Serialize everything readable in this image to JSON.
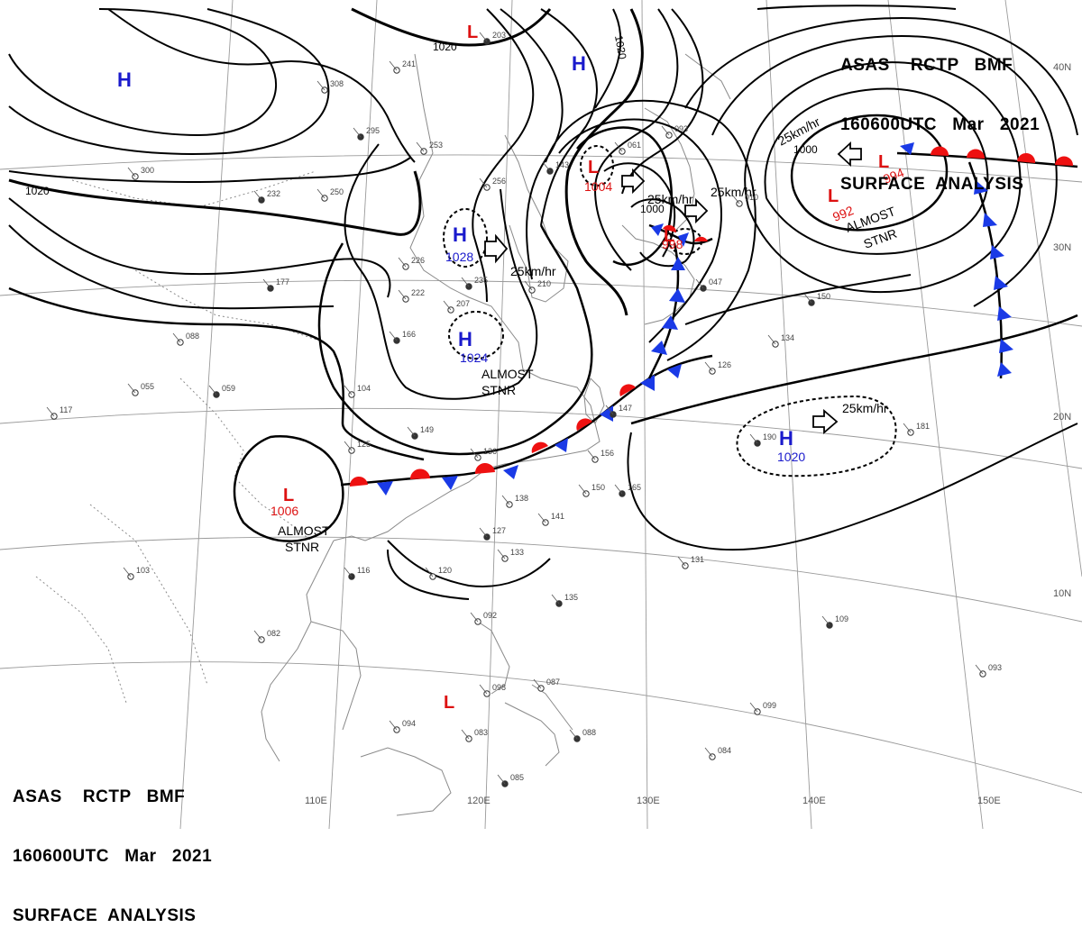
{
  "header": {
    "line1": "ASAS    RCTP   BMF",
    "line2": "160600UTC   Mar   2021",
    "line3": "SURFACE  ANALYSIS"
  },
  "pressure_centers": [
    {
      "type": "H",
      "label": "H",
      "value": ""
    },
    {
      "type": "H",
      "label": "H",
      "value": ""
    },
    {
      "type": "H",
      "label": "H",
      "value": "1028"
    },
    {
      "type": "H",
      "label": "H",
      "value": "1024"
    },
    {
      "type": "H",
      "label": "H",
      "value": "1020"
    },
    {
      "type": "L",
      "label": "L",
      "value": ""
    },
    {
      "type": "L",
      "label": "L",
      "value": "1004"
    },
    {
      "type": "L",
      "label": "L",
      "value": "998"
    },
    {
      "type": "L",
      "label": "L",
      "value": "994"
    },
    {
      "type": "L",
      "label": "L",
      "value": "992"
    },
    {
      "type": "L",
      "label": "L",
      "value": "1006"
    },
    {
      "type": "L",
      "label": "L",
      "value": ""
    }
  ],
  "isobar_labels": [
    "1020",
    "1020",
    "1020",
    "1000",
    "1000"
  ],
  "motion_labels": [
    "25km/hr",
    "25km/hr",
    "25km/hr",
    "25km/hr",
    "25km/hr"
  ],
  "status_labels": [
    {
      "l1": "ALMOST",
      "l2": "STNR"
    },
    {
      "l1": "ALMOST",
      "l2": "STNR"
    },
    {
      "l1": "ALMOST",
      "l2": "STNR"
    }
  ],
  "longitudes": [
    "110E",
    "120E",
    "130E",
    "140E",
    "150E"
  ],
  "latitudes": [
    "40N",
    "30N",
    "20N",
    "10N"
  ],
  "stations": [
    "203",
    "241",
    "308",
    "295",
    "253",
    "256",
    "143",
    "061",
    "093",
    "232",
    "250",
    "300",
    "177",
    "226",
    "222",
    "235",
    "210",
    "207",
    "166",
    "088",
    "055",
    "059",
    "117",
    "104",
    "149",
    "125",
    "136",
    "147",
    "156",
    "150",
    "165",
    "138",
    "141",
    "127",
    "133",
    "120",
    "116",
    "082",
    "092",
    "135",
    "098",
    "087",
    "088",
    "094",
    "083",
    "085",
    "084",
    "131",
    "109",
    "093",
    "099",
    "190",
    "181",
    "134",
    "150",
    "126",
    "010",
    "047",
    "103"
  ],
  "colors": {
    "high": "#1a1acc",
    "low": "#dd1111",
    "warm_front": "#ee1111",
    "cold_front": "#1a3ae6",
    "isobar": "#000000",
    "coast": "#8a8a8a"
  }
}
